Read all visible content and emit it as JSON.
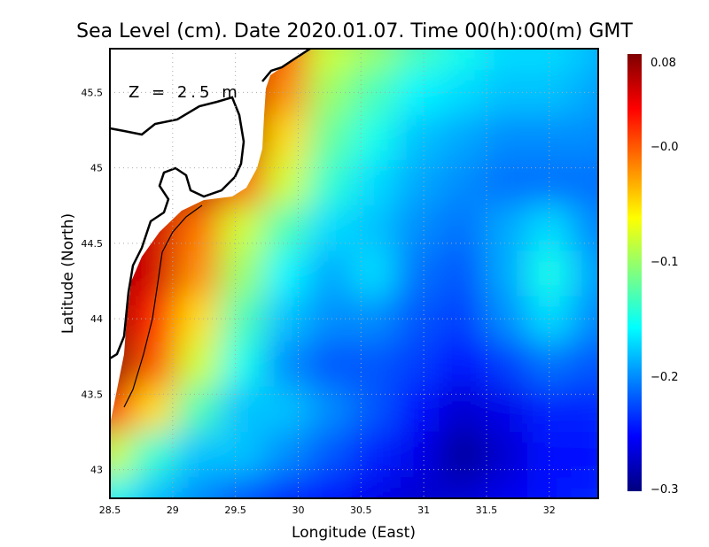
{
  "chart_data": {
    "type": "heatmap",
    "title": "Sea Level (cm). Date 2020.01.07. Time 00(h):00(m) GMT",
    "annotation": "Z = 2.5 m",
    "xlabel": "Longitude (East)",
    "ylabel": "Latitude (North)",
    "xlim": [
      28.5,
      32.39
    ],
    "ylim": [
      42.81,
      45.79
    ],
    "xticks": [
      "28.5",
      "29",
      "29.5",
      "30",
      "30.5",
      "31",
      "31.5",
      "32"
    ],
    "yticks": [
      "43",
      "43.5",
      "44",
      "44.5",
      "45",
      "45.5"
    ],
    "grid": true,
    "colorbar": {
      "range": [
        -0.3,
        0.08
      ],
      "colormap": "jet",
      "ticks": [
        "0.08",
        "-0.0",
        "-0.1",
        "-0.2",
        "-0.3"
      ],
      "tick_values": [
        0.08,
        0.0,
        -0.1,
        -0.2,
        -0.3
      ]
    },
    "grid_lon": [
      28.5,
      28.85,
      29.2,
      29.55,
      29.9,
      30.25,
      30.6,
      30.95,
      31.3,
      31.65,
      32.0,
      32.35
    ],
    "grid_lat": [
      45.8,
      45.5,
      45.2,
      44.9,
      44.6,
      44.3,
      44.0,
      43.7,
      43.4,
      43.1,
      42.8
    ],
    "values": [
      [
        null,
        null,
        null,
        null,
        0.0,
        -0.08,
        -0.1,
        -0.13,
        -0.15,
        -0.17,
        -0.17,
        -0.18
      ],
      [
        null,
        null,
        null,
        null,
        -0.02,
        -0.1,
        -0.13,
        -0.16,
        -0.17,
        -0.18,
        -0.18,
        -0.19
      ],
      [
        null,
        null,
        null,
        null,
        -0.05,
        -0.12,
        -0.15,
        -0.18,
        -0.19,
        -0.2,
        -0.2,
        -0.2
      ],
      [
        null,
        null,
        null,
        0.0,
        -0.08,
        -0.14,
        -0.17,
        -0.19,
        -0.2,
        -0.21,
        -0.21,
        -0.21
      ],
      [
        null,
        0.05,
        -0.01,
        -0.08,
        -0.13,
        -0.17,
        -0.18,
        -0.2,
        -0.21,
        -0.19,
        -0.17,
        -0.2
      ],
      [
        null,
        0.05,
        -0.02,
        -0.1,
        -0.16,
        -0.19,
        -0.17,
        -0.21,
        -0.22,
        -0.19,
        -0.15,
        -0.19
      ],
      [
        0.07,
        0.02,
        -0.05,
        -0.13,
        -0.18,
        -0.2,
        -0.2,
        -0.22,
        -0.23,
        -0.2,
        -0.17,
        -0.2
      ],
      [
        0.08,
        0.0,
        -0.08,
        -0.15,
        -0.2,
        -0.22,
        -0.22,
        -0.23,
        -0.25,
        -0.23,
        -0.21,
        -0.22
      ],
      [
        0.02,
        -0.05,
        -0.13,
        -0.18,
        -0.18,
        -0.2,
        -0.22,
        -0.25,
        -0.27,
        -0.26,
        -0.24,
        -0.24
      ],
      [
        -0.08,
        -0.14,
        -0.18,
        -0.18,
        -0.2,
        -0.22,
        -0.24,
        -0.26,
        -0.29,
        -0.27,
        -0.25,
        -0.25
      ],
      [
        -0.15,
        -0.18,
        -0.2,
        -0.22,
        -0.24,
        -0.25,
        -0.26,
        -0.27,
        -0.27,
        -0.26,
        -0.25,
        -0.24
      ]
    ]
  }
}
